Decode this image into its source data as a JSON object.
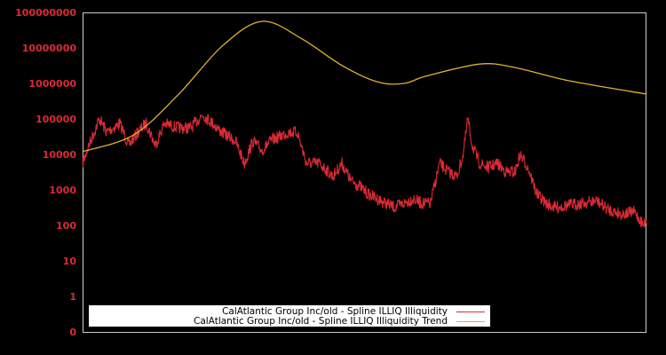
{
  "chart_data": {
    "type": "line",
    "title": "",
    "xlabel": "",
    "ylabel": "",
    "yscale": "log",
    "ylim": [
      0,
      100000000
    ],
    "y_ticks": [
      "0",
      "1",
      "10",
      "100",
      "1000",
      "10000",
      "100000",
      "1000000",
      "10000000",
      "100000000"
    ],
    "x_ticks": [],
    "grid": false,
    "legend_position": "bottom-left inside",
    "series": [
      {
        "name": "CalAtlantic Group Inc/old - Spline ILLIQ Illiquidity",
        "color": "#dd2a35",
        "x": [
          0,
          1.1,
          3,
          4.3,
          6.6,
          8.2,
          9.8,
          11.3,
          12.9,
          14.5,
          16.9,
          19.2,
          21.3,
          23.1,
          24.7,
          27.1,
          28.7,
          30.2,
          31.8,
          33.4,
          34.9,
          36.5,
          38.1,
          39.7,
          42.0,
          44.4,
          46.0,
          47.6,
          49.1,
          50.7,
          52.3,
          53.8,
          55.4,
          57.0,
          58.6,
          60.1,
          61.7,
          63.3,
          64.9,
          66.4,
          67.5,
          68.3,
          69.1,
          70.4,
          71.9,
          73.5,
          75.1,
          76.7,
          77.6,
          79.0,
          80.6,
          82.2,
          83.8,
          86.1,
          88.5,
          91.2,
          93.2,
          95.6,
          97.9,
          99.5,
          100
        ],
        "values": [
          5600,
          18000,
          100000,
          42000,
          75000,
          18000,
          42000,
          75000,
          18000,
          75000,
          56000,
          56000,
          133000,
          75000,
          42000,
          24000,
          5600,
          24000,
          13000,
          24000,
          32000,
          42000,
          42000,
          5600,
          5600,
          2400,
          5600,
          1800,
          1300,
          750,
          560,
          420,
          320,
          420,
          560,
          420,
          420,
          5600,
          3200,
          2400,
          10000,
          100000,
          18000,
          5600,
          4200,
          5600,
          3200,
          3200,
          10000,
          4200,
          750,
          420,
          320,
          370,
          420,
          490,
          280,
          210,
          240,
          100,
          160
        ]
      },
      {
        "name": "CalAtlantic Group Inc/old - Spline ILLIQ Illiquidity Trend",
        "color": "#e0b030",
        "x": [
          0,
          9.0,
          16.9,
          24.7,
          31.8,
          38.9,
          46.0,
          52.3,
          57.0,
          60.9,
          70.4,
          76.7,
          86.1,
          100
        ],
        "values": [
          12000,
          35000,
          470000,
          11000000,
          56000000,
          18000000,
          3200000,
          1100000,
          1000000,
          1600000,
          3500000,
          2800000,
          1200000,
          500000
        ]
      }
    ]
  },
  "axes": {
    "y_labels": [
      "100000000",
      "10000000",
      "1000000",
      "100000",
      "10000",
      "1000",
      "100",
      "10",
      "1",
      "0"
    ]
  },
  "legend": {
    "items": [
      {
        "label": "CalAtlantic Group Inc/old - Spline ILLIQ Illiquidity",
        "color": "#dd2a35"
      },
      {
        "label": "CalAtlantic Group Inc/old - Spline ILLIQ Illiquidity Trend",
        "color": "#e0b030"
      }
    ]
  },
  "colors": {
    "background": "#000000",
    "frame": "#cccccc",
    "tick_label": "#dd2a35",
    "legend_bg": "#ffffff"
  }
}
